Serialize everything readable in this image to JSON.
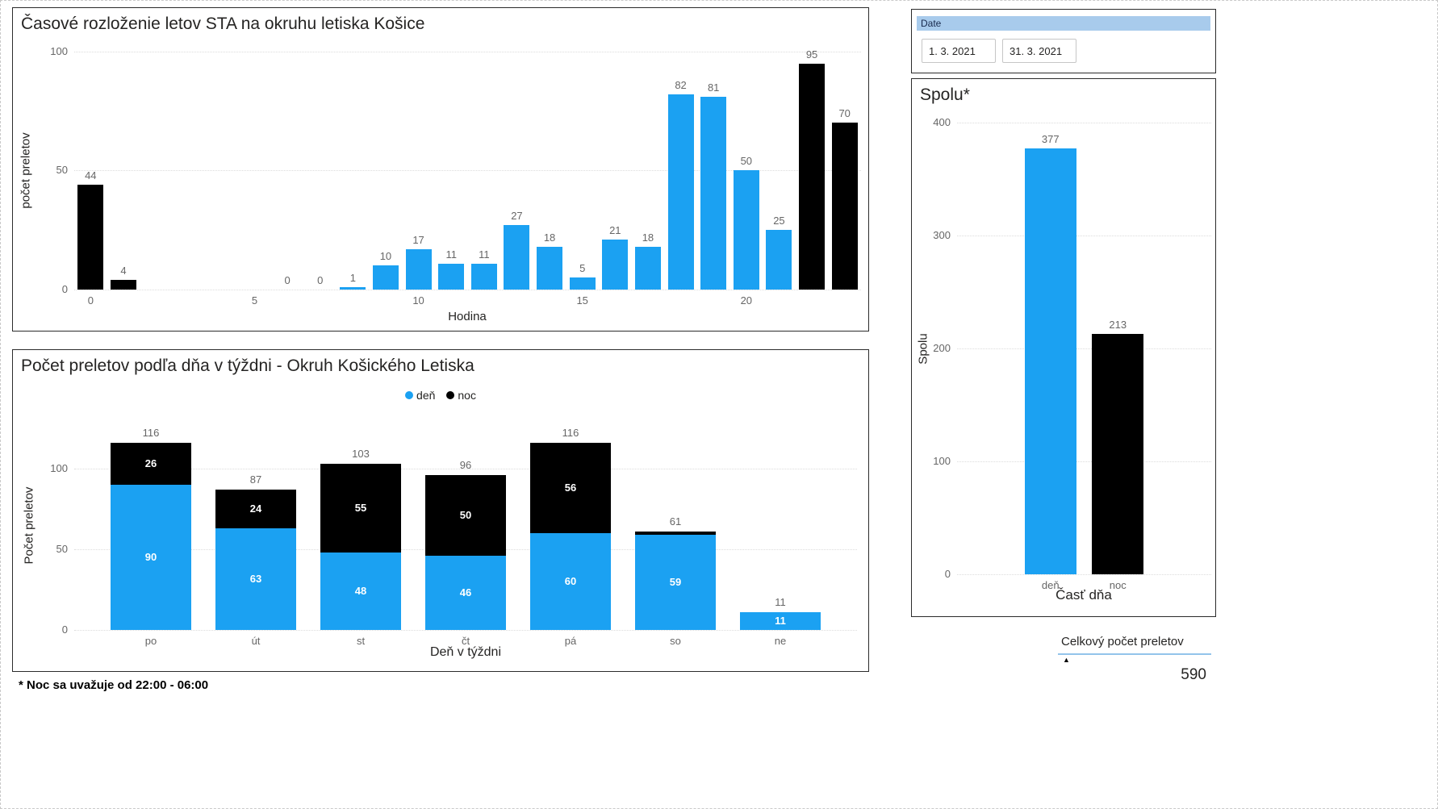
{
  "colors": {
    "day": "#1BA1F2",
    "night": "#000000",
    "grid": "#DCDCDC",
    "tick_text": "#666666",
    "title_text": "#252423",
    "inside_label": "#FFFFFF",
    "panel_border": "#2B2B2B",
    "slicer_header_bg": "#A8CBEC",
    "card_underline": "#93C4EB"
  },
  "date_slicer": {
    "header": "Date",
    "start": "1. 3. 2021",
    "end": "31. 3. 2021"
  },
  "footnote": "* Noc sa uvažuje od 22:00 - 06:00",
  "card": {
    "title": "Celkový počet preletov",
    "value": "590",
    "sort_indicator": "▲"
  },
  "chart_data": [
    {
      "id": "hourly",
      "type": "bar",
      "title": "Časové rozloženie letov STA na okruhu letiska Košice",
      "xlabel": "Hodina",
      "ylabel": "počet preletov",
      "ylim": [
        0,
        100
      ],
      "yticks": [
        0,
        50,
        100
      ],
      "xticks": [
        0,
        5,
        10,
        15,
        20
      ],
      "x": [
        0,
        1,
        6,
        7,
        8,
        9,
        10,
        11,
        12,
        13,
        14,
        15,
        16,
        17,
        18,
        19,
        20,
        21,
        22,
        23
      ],
      "values": [
        44,
        4,
        0,
        0,
        1,
        10,
        17,
        11,
        11,
        27,
        18,
        5,
        21,
        18,
        82,
        81,
        50,
        25,
        95,
        70
      ],
      "bar_colors": [
        "night",
        "night",
        "day",
        "day",
        "day",
        "day",
        "day",
        "day",
        "day",
        "day",
        "day",
        "day",
        "day",
        "day",
        "day",
        "day",
        "day",
        "day",
        "night",
        "night"
      ],
      "grid": "dotted-horizontal",
      "legend": "none"
    },
    {
      "id": "weekday",
      "type": "stacked-bar",
      "title": "Počet preletov podľa dňa v týždni - Okruh Košického Letiska",
      "xlabel": "Deň v týždni",
      "ylabel": "Počet preletov",
      "ylim": [
        0,
        130
      ],
      "yticks": [
        0,
        50,
        100
      ],
      "categories": [
        "po",
        "út",
        "st",
        "čt",
        "pá",
        "so",
        "ne"
      ],
      "series": [
        {
          "name": "deň",
          "color": "day",
          "values": [
            90,
            63,
            48,
            46,
            60,
            59,
            11
          ]
        },
        {
          "name": "noc",
          "color": "night",
          "values": [
            26,
            24,
            55,
            50,
            56,
            2,
            0
          ]
        }
      ],
      "totals": [
        116,
        87,
        103,
        96,
        116,
        61,
        11
      ],
      "grid": "dotted-horizontal",
      "legend_position": "top-center"
    },
    {
      "id": "spolu",
      "type": "bar",
      "title": "Spolu*",
      "xlabel": "Časť dňa",
      "ylabel": "Spolu",
      "ylim": [
        0,
        400
      ],
      "yticks": [
        0,
        100,
        200,
        300,
        400
      ],
      "categories": [
        "deň",
        "noc"
      ],
      "values": [
        377,
        213
      ],
      "bar_colors": [
        "day",
        "night"
      ],
      "grid": "dotted-horizontal",
      "legend": "none"
    }
  ]
}
